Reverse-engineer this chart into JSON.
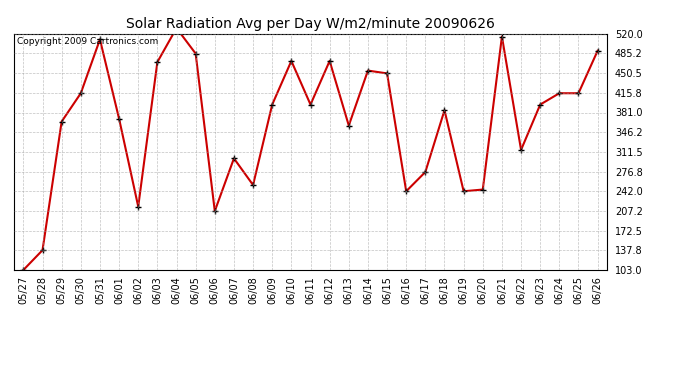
{
  "title": "Solar Radiation Avg per Day W/m2/minute 20090626",
  "copyright_text": "Copyright 2009 Cartronics.com",
  "labels": [
    "05/27",
    "05/28",
    "05/29",
    "05/30",
    "05/31",
    "06/01",
    "06/02",
    "06/03",
    "06/04",
    "06/05",
    "06/06",
    "06/07",
    "06/08",
    "06/09",
    "06/10",
    "06/11",
    "06/12",
    "06/13",
    "06/14",
    "06/15",
    "06/16",
    "06/17",
    "06/18",
    "06/19",
    "06/20",
    "06/21",
    "06/22",
    "06/23",
    "06/24",
    "06/25",
    "06/26"
  ],
  "values": [
    103,
    138,
    365,
    415,
    510,
    370,
    215,
    470,
    530,
    485,
    207,
    300,
    253,
    395,
    472,
    395,
    472,
    358,
    455,
    450,
    242,
    276,
    385,
    242,
    245,
    515,
    315,
    395,
    415,
    415,
    490
  ],
  "line_color": "#cc0000",
  "marker": "+",
  "marker_color": "#000000",
  "marker_size": 5,
  "background_color": "#ffffff",
  "grid_color": "#999999",
  "ylim": [
    103,
    520
  ],
  "yticks": [
    103.0,
    137.8,
    172.5,
    207.2,
    242.0,
    276.8,
    311.5,
    346.2,
    381.0,
    415.8,
    450.5,
    485.2,
    520.0
  ],
  "ytick_labels": [
    "103.0",
    "137.8",
    "172.5",
    "207.2",
    "242.0",
    "276.8",
    "311.5",
    "346.2",
    "381.0",
    "415.8",
    "450.5",
    "485.2",
    "520.0"
  ],
  "title_fontsize": 10,
  "tick_fontsize": 7,
  "copyright_fontsize": 6.5,
  "linewidth": 1.5
}
